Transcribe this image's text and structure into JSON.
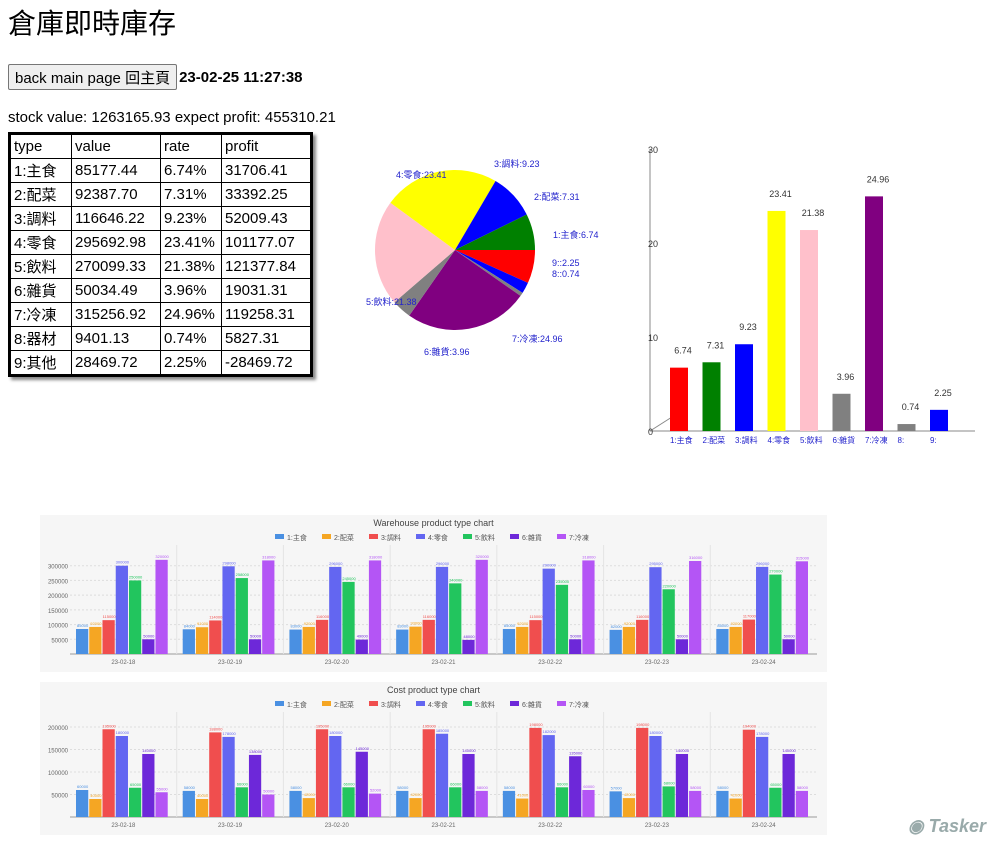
{
  "page": {
    "title": "倉庫即時庫存",
    "back_button": "back main page 回主頁",
    "timestamp": "23-02-25 11:27:38"
  },
  "summary": {
    "stock_label": "stock value:",
    "stock_value": "1263165.93",
    "profit_label": "expect profit:",
    "profit_value": "455310.21"
  },
  "table": {
    "headers": [
      "type",
      "value",
      "rate",
      "profit"
    ],
    "rows": [
      [
        "1:主食",
        "85177.44",
        "6.74%",
        "31706.41"
      ],
      [
        "2:配菜",
        "92387.70",
        "7.31%",
        "33392.25"
      ],
      [
        "3:調料",
        "116646.22",
        "9.23%",
        "52009.43"
      ],
      [
        "4:零食",
        "295692.98",
        "23.41%",
        "101177.07"
      ],
      [
        "5:飲料",
        "270099.33",
        "21.38%",
        "121377.84"
      ],
      [
        "6:雜貨",
        "50034.49",
        "3.96%",
        "19031.31"
      ],
      [
        "7:冷凍",
        "315256.92",
        "24.96%",
        "119258.31"
      ],
      [
        "8:器材",
        "9401.13",
        "0.74%",
        "5827.31"
      ],
      [
        "9:其他",
        "28469.72",
        "2.25%",
        "-28469.72"
      ]
    ]
  },
  "chart_data": [
    {
      "type": "pie",
      "labels": [
        "1:主食",
        "2:配菜",
        "3:調料",
        "4:零食",
        "5:飲料",
        "6:雜貨",
        "7:冷凍",
        "8:",
        "9:"
      ],
      "values": [
        6.74,
        7.31,
        9.23,
        23.41,
        21.38,
        3.96,
        24.96,
        0.74,
        2.25
      ],
      "slice_labels": [
        "1:主食:6.74",
        "2:配菜:7.31",
        "3:調料:9.23",
        "4:零食:23.41",
        "5:飲料:21.38",
        "6:雜貨:3.96",
        "7:冷凍:24.96",
        "8::0.74",
        "9::2.25"
      ],
      "colors": [
        "#ff0000",
        "#008000",
        "#0000ff",
        "#ffff00",
        "#ffc0cb",
        "#808080",
        "#800080",
        "#808080",
        "#0000ff"
      ]
    },
    {
      "type": "bar",
      "categories": [
        "1:主食",
        "2:配菜",
        "3:調料",
        "4:零食",
        "5:飲料",
        "6:雜貨",
        "7:冷凍",
        "8:",
        "9:"
      ],
      "values": [
        6.74,
        7.31,
        9.23,
        23.41,
        21.38,
        3.96,
        24.96,
        0.74,
        2.25
      ],
      "colors": [
        "#ff0000",
        "#008000",
        "#0000ff",
        "#ffff00",
        "#ffc0cb",
        "#808080",
        "#800080",
        "#808080",
        "#0000ff"
      ],
      "ylim": [
        0,
        30
      ],
      "yticks": [
        "0",
        "10",
        "20",
        "30"
      ]
    },
    {
      "type": "bar",
      "title": "Warehouse product type chart",
      "legend": [
        "1:主食",
        "2:配菜",
        "3:調料",
        "4:零食",
        "5:飲料",
        "6:雜貨",
        "7:冷凍"
      ],
      "colors": [
        "#4a90e2",
        "#f5a623",
        "#f04e4e",
        "#6366f1",
        "#22c55e",
        "#6d28d9",
        "#b455f5"
      ],
      "categories": [
        "23-02-18",
        "23-02-19",
        "23-02-20",
        "23-02-21",
        "23-02-22",
        "23-02-23",
        "23-02-24"
      ],
      "ylim": [
        0,
        350000
      ],
      "yticks": [
        "50000",
        "100000",
        "150000",
        "200000",
        "250000",
        "300000"
      ],
      "series": [
        {
          "values": [
            85000,
            84000,
            83000,
            83000,
            85000,
            82000,
            85000
          ]
        },
        {
          "values": [
            92000,
            91000,
            92000,
            93000,
            92000,
            92000,
            92000
          ]
        },
        {
          "values": [
            115000,
            114000,
            116000,
            116000,
            115000,
            116000,
            117000
          ]
        },
        {
          "values": [
            300000,
            298000,
            296000,
            296000,
            290000,
            295000,
            296000
          ]
        },
        {
          "values": [
            250000,
            258000,
            245000,
            240000,
            235000,
            220000,
            270000
          ]
        },
        {
          "values": [
            50000,
            50000,
            49000,
            48000,
            50000,
            50000,
            50000
          ]
        },
        {
          "values": [
            320000,
            318000,
            318000,
            320000,
            318000,
            316000,
            315000
          ]
        }
      ]
    },
    {
      "type": "bar",
      "title": "Cost product type chart",
      "legend": [
        "1:主食",
        "2:配菜",
        "3:調料",
        "4:零食",
        "5:飲料",
        "6:雜貨",
        "7:冷凍"
      ],
      "colors": [
        "#4a90e2",
        "#f5a623",
        "#f04e4e",
        "#6366f1",
        "#22c55e",
        "#6d28d9",
        "#b455f5"
      ],
      "categories": [
        "23-02-18",
        "23-02-19",
        "23-02-20",
        "23-02-21",
        "23-02-22",
        "23-02-23",
        "23-02-24"
      ],
      "ylim": [
        0,
        220000
      ],
      "yticks": [
        "50000",
        "100000",
        "150000",
        "200000"
      ],
      "series": [
        {
          "values": [
            60000,
            58000,
            58000,
            58000,
            58000,
            57000,
            58000
          ]
        },
        {
          "values": [
            40000,
            40000,
            42000,
            42000,
            41000,
            42000,
            41000
          ]
        },
        {
          "values": [
            195000,
            188000,
            195000,
            195000,
            198000,
            198000,
            194000
          ]
        },
        {
          "values": [
            180000,
            178000,
            180000,
            185000,
            182000,
            180000,
            178000
          ]
        },
        {
          "values": [
            65000,
            66000,
            66000,
            66000,
            66000,
            68000,
            65000
          ]
        },
        {
          "values": [
            140000,
            138000,
            145000,
            140000,
            135000,
            140000,
            140000
          ]
        },
        {
          "values": [
            55000,
            50000,
            52000,
            58000,
            60000,
            58000,
            58000
          ]
        }
      ]
    }
  ],
  "watermark": "Tasker"
}
